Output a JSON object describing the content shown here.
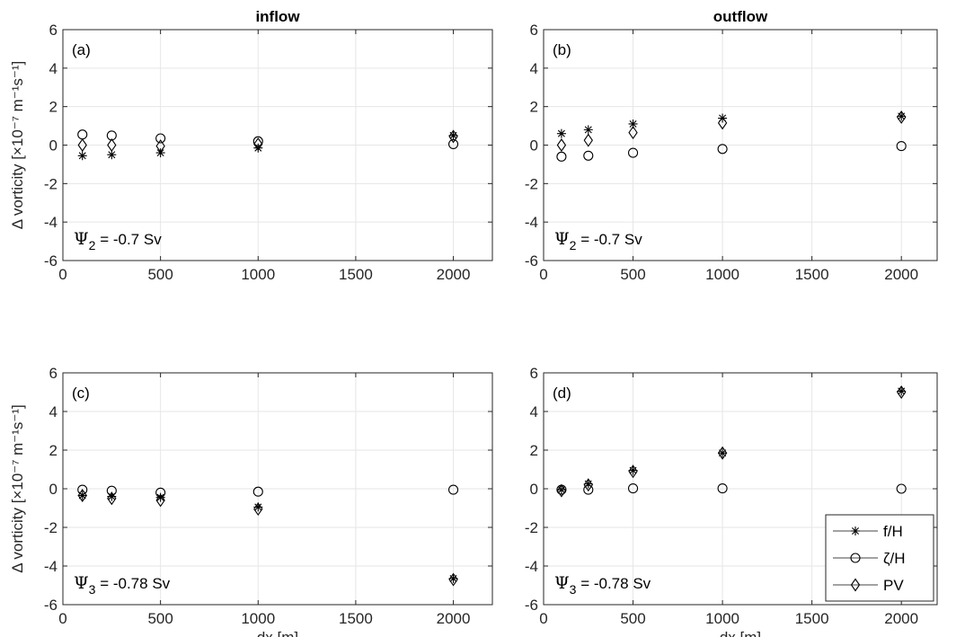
{
  "chart_data": [
    {
      "type": "scatter",
      "panel": "(a)",
      "title": "inflow",
      "ylabel": "Δ vorticity [×10⁻⁷ m⁻¹s⁻¹]",
      "xlabel": "",
      "annotation": {
        "symbol": "Ψ",
        "sub": "2",
        "text": " = -0.7 Sv"
      },
      "xlim": [
        0,
        2200
      ],
      "ylim": [
        -6,
        6
      ],
      "x": [
        100,
        250,
        500,
        1000,
        2000
      ],
      "series": [
        {
          "name": "f/H",
          "marker": "asterisk",
          "values": [
            -0.55,
            -0.5,
            -0.4,
            -0.15,
            0.5
          ]
        },
        {
          "name": "ζ/H",
          "marker": "circle",
          "values": [
            0.55,
            0.5,
            0.35,
            0.2,
            0.05
          ]
        },
        {
          "name": "PV",
          "marker": "diamond",
          "values": [
            0.0,
            0.0,
            -0.05,
            0.05,
            0.45
          ]
        }
      ]
    },
    {
      "type": "scatter",
      "panel": "(b)",
      "title": "outflow",
      "ylabel": "",
      "xlabel": "",
      "annotation": {
        "symbol": "Ψ",
        "sub": "2",
        "text": " = -0.7 Sv"
      },
      "xlim": [
        0,
        2200
      ],
      "ylim": [
        -6,
        6
      ],
      "x": [
        100,
        250,
        500,
        1000,
        2000
      ],
      "series": [
        {
          "name": "f/H",
          "marker": "asterisk",
          "values": [
            0.6,
            0.8,
            1.1,
            1.4,
            1.5
          ]
        },
        {
          "name": "ζ/H",
          "marker": "circle",
          "values": [
            -0.6,
            -0.55,
            -0.4,
            -0.2,
            -0.05
          ]
        },
        {
          "name": "PV",
          "marker": "diamond",
          "values": [
            0.0,
            0.25,
            0.65,
            1.15,
            1.45
          ]
        }
      ]
    },
    {
      "type": "scatter",
      "panel": "(c)",
      "title": "",
      "ylabel": "Δ vorticity [×10⁻⁷ m⁻¹s⁻¹]",
      "xlabel": "dx [m]",
      "annotation": {
        "symbol": "Ψ",
        "sub": "3",
        "text": " = -0.78 Sv"
      },
      "xlim": [
        0,
        2200
      ],
      "ylim": [
        -6,
        6
      ],
      "x": [
        100,
        250,
        500,
        1000,
        2000
      ],
      "series": [
        {
          "name": "f/H",
          "marker": "asterisk",
          "values": [
            -0.35,
            -0.4,
            -0.45,
            -0.95,
            -4.65
          ]
        },
        {
          "name": "ζ/H",
          "marker": "circle",
          "values": [
            -0.05,
            -0.1,
            -0.2,
            -0.15,
            -0.05
          ]
        },
        {
          "name": "PV",
          "marker": "diamond",
          "values": [
            -0.35,
            -0.5,
            -0.6,
            -1.05,
            -4.7
          ]
        }
      ]
    },
    {
      "type": "scatter",
      "panel": "(d)",
      "title": "",
      "ylabel": "",
      "xlabel": "dx [m]",
      "annotation": {
        "symbol": "Ψ",
        "sub": "3",
        "text": " = -0.78 Sv"
      },
      "xlim": [
        0,
        2200
      ],
      "ylim": [
        -6,
        6
      ],
      "x": [
        100,
        250,
        500,
        1000,
        2000
      ],
      "legend": "bottom-right",
      "series": [
        {
          "name": "f/H",
          "marker": "asterisk",
          "values": [
            -0.05,
            0.25,
            0.95,
            1.85,
            5.05
          ]
        },
        {
          "name": "ζ/H",
          "marker": "circle",
          "values": [
            -0.05,
            -0.05,
            0.02,
            0.02,
            0.0
          ]
        },
        {
          "name": "PV",
          "marker": "diamond",
          "values": [
            -0.1,
            0.2,
            0.9,
            1.85,
            5.0
          ]
        }
      ]
    }
  ],
  "axes": {
    "xticks": [
      0,
      500,
      1000,
      1500,
      2000
    ],
    "yticks": [
      -6,
      -4,
      -2,
      0,
      2,
      4,
      6
    ],
    "grid": true
  },
  "colors": {
    "ink": "#262626",
    "grid": "#e6e6e6",
    "marker": "#000000"
  }
}
